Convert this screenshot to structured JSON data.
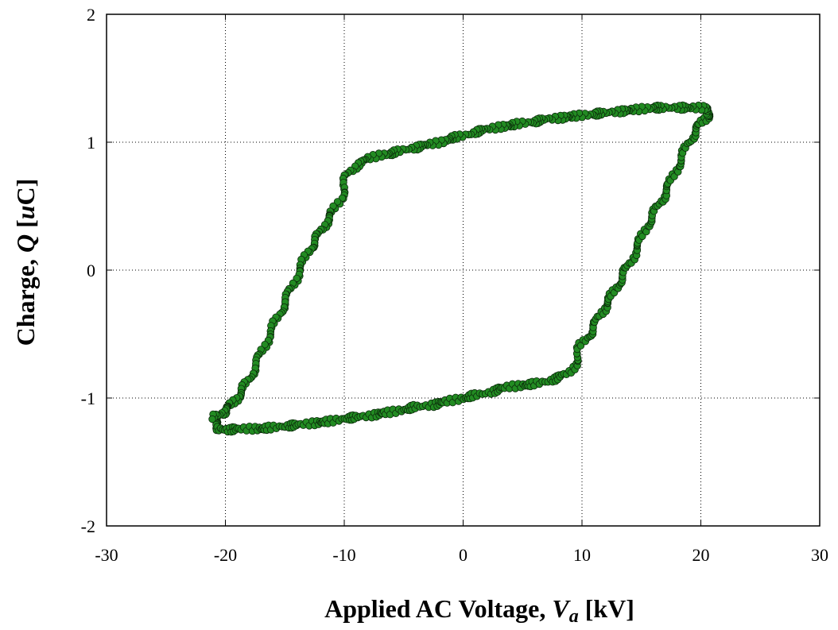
{
  "chart_data": {
    "type": "scatter",
    "xlabel_parts": [
      "Applied AC Voltage, ",
      "V",
      "a",
      " [kV]"
    ],
    "ylabel_parts": [
      "Charge, ",
      "Q",
      " [",
      "u",
      "C]"
    ],
    "xlim": [
      -30,
      30
    ],
    "ylim": [
      -2,
      2
    ],
    "x_ticks": [
      "-30",
      "-20",
      "-10",
      "0",
      "10",
      "20",
      "30"
    ],
    "y_ticks": [
      "2",
      "1",
      "0",
      "-1",
      "-2"
    ],
    "x_tick_values": [
      -30,
      -20,
      -10,
      0,
      10,
      20,
      30
    ],
    "y_tick_values": [
      2,
      1,
      0,
      -1,
      -2
    ],
    "grid": true,
    "marker_color": "#228b22",
    "marker_edge_color": "#0b2a0b",
    "series": [
      {
        "points": [
          [
            -21.0,
            -1.15
          ],
          [
            -20.8,
            -1.2
          ],
          [
            -20.5,
            -1.24
          ],
          [
            -20.0,
            -1.25
          ],
          [
            -19.0,
            -1.24
          ],
          [
            -18.0,
            -1.24
          ],
          [
            -17.0,
            -1.24
          ],
          [
            -16.0,
            -1.23
          ],
          [
            -15.0,
            -1.22
          ],
          [
            -14.0,
            -1.21
          ],
          [
            -13.0,
            -1.2
          ],
          [
            -12.0,
            -1.19
          ],
          [
            -11.0,
            -1.18
          ],
          [
            -10.0,
            -1.16
          ],
          [
            -9.0,
            -1.15
          ],
          [
            -8.0,
            -1.14
          ],
          [
            -7.0,
            -1.12
          ],
          [
            -6.0,
            -1.11
          ],
          [
            -5.0,
            -1.09
          ],
          [
            -4.0,
            -1.07
          ],
          [
            -3.0,
            -1.06
          ],
          [
            -2.0,
            -1.04
          ],
          [
            -1.0,
            -1.02
          ],
          [
            0.0,
            -1.0
          ],
          [
            1.0,
            -0.98
          ],
          [
            2.0,
            -0.96
          ],
          [
            3.0,
            -0.93
          ],
          [
            4.0,
            -0.91
          ],
          [
            5.0,
            -0.9
          ],
          [
            6.0,
            -0.89
          ],
          [
            7.0,
            -0.87
          ],
          [
            8.0,
            -0.84
          ],
          [
            9.0,
            -0.8
          ],
          [
            9.5,
            -0.72
          ],
          [
            9.8,
            -0.6
          ],
          [
            10.5,
            -0.52
          ],
          [
            11.0,
            -0.45
          ],
          [
            11.5,
            -0.35
          ],
          [
            12.0,
            -0.28
          ],
          [
            12.5,
            -0.2
          ],
          [
            13.0,
            -0.12
          ],
          [
            13.5,
            -0.03
          ],
          [
            14.0,
            0.05
          ],
          [
            14.5,
            0.15
          ],
          [
            15.0,
            0.25
          ],
          [
            15.5,
            0.35
          ],
          [
            16.0,
            0.43
          ],
          [
            16.5,
            0.52
          ],
          [
            17.0,
            0.6
          ],
          [
            17.5,
            0.7
          ],
          [
            18.0,
            0.8
          ],
          [
            18.5,
            0.9
          ],
          [
            19.0,
            1.0
          ],
          [
            19.5,
            1.08
          ],
          [
            20.0,
            1.15
          ],
          [
            20.5,
            1.2
          ],
          [
            20.8,
            1.22
          ],
          [
            20.5,
            1.26
          ],
          [
            20.0,
            1.27
          ],
          [
            19.0,
            1.27
          ],
          [
            18.0,
            1.27
          ],
          [
            17.0,
            1.27
          ],
          [
            16.0,
            1.27
          ],
          [
            15.0,
            1.26
          ],
          [
            14.0,
            1.25
          ],
          [
            13.0,
            1.24
          ],
          [
            12.0,
            1.23
          ],
          [
            11.0,
            1.22
          ],
          [
            10.0,
            1.21
          ],
          [
            9.0,
            1.2
          ],
          [
            8.0,
            1.19
          ],
          [
            7.0,
            1.18
          ],
          [
            6.0,
            1.16
          ],
          [
            5.0,
            1.15
          ],
          [
            4.0,
            1.13
          ],
          [
            3.0,
            1.12
          ],
          [
            2.0,
            1.1
          ],
          [
            1.0,
            1.08
          ],
          [
            0.0,
            1.05
          ],
          [
            -1.0,
            1.03
          ],
          [
            -2.0,
            1.0
          ],
          [
            -3.0,
            0.98
          ],
          [
            -4.0,
            0.96
          ],
          [
            -5.0,
            0.94
          ],
          [
            -6.0,
            0.91
          ],
          [
            -7.0,
            0.9
          ],
          [
            -8.0,
            0.87
          ],
          [
            -9.0,
            0.82
          ],
          [
            -9.8,
            0.75
          ],
          [
            -10.0,
            0.65
          ],
          [
            -10.3,
            0.55
          ],
          [
            -11.0,
            0.45
          ],
          [
            -11.5,
            0.38
          ],
          [
            -12.0,
            0.3
          ],
          [
            -12.5,
            0.22
          ],
          [
            -13.0,
            0.15
          ],
          [
            -13.5,
            0.05
          ],
          [
            -14.0,
            -0.05
          ],
          [
            -14.5,
            -0.15
          ],
          [
            -15.0,
            -0.25
          ],
          [
            -15.5,
            -0.35
          ],
          [
            -16.0,
            -0.45
          ],
          [
            -16.5,
            -0.55
          ],
          [
            -17.0,
            -0.65
          ],
          [
            -17.5,
            -0.75
          ],
          [
            -18.0,
            -0.85
          ],
          [
            -18.5,
            -0.93
          ],
          [
            -19.0,
            -1.0
          ],
          [
            -19.5,
            -1.05
          ],
          [
            -20.0,
            -1.1
          ],
          [
            -20.5,
            -1.13
          ]
        ]
      }
    ]
  }
}
